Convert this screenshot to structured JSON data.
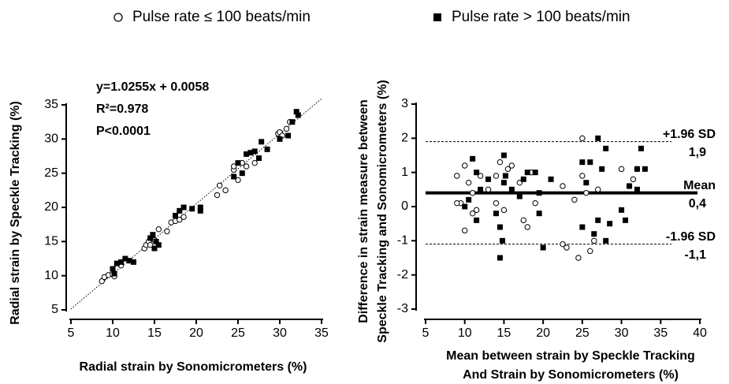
{
  "chart_data": [
    {
      "type": "scatter",
      "xlabel": "Radial strain by Sonomicrometers (%)",
      "ylabel": "Radial strain by Speckle Tracking (%)",
      "annotations": [
        "y=1.0255x + 0.0058",
        "R²=0.978",
        "P<0.0001"
      ],
      "fit_line": {
        "slope": 1.0255,
        "intercept": 0.0058,
        "style": "dotted"
      },
      "xlim": [
        5,
        35
      ],
      "ylim": [
        5,
        35
      ],
      "xticks": [
        5,
        10,
        15,
        20,
        25,
        30,
        35
      ],
      "yticks": [
        5,
        10,
        15,
        20,
        25,
        30,
        35
      ],
      "series": [
        {
          "name": "Pulse rate ≤ 100 beats/min",
          "marker": "circle",
          "color": "#000000",
          "x": [
            8.7,
            9,
            9.5,
            10,
            10.2,
            11,
            13.8,
            14,
            14.3,
            14.5,
            15,
            15.5,
            16.5,
            17,
            17.5,
            18,
            18.5,
            22.5,
            22.8,
            23.5,
            24.5,
            24.5,
            25,
            25.5,
            26,
            27,
            29.8,
            30,
            30.3,
            30.8,
            31.2
          ],
          "values": [
            9.2,
            9.8,
            10.1,
            10.2,
            9.9,
            11.5,
            14,
            14.5,
            15,
            14.5,
            15.2,
            16.8,
            16.5,
            17.8,
            18,
            18.2,
            18.6,
            21.8,
            23.2,
            22.5,
            25.5,
            26,
            24,
            26.5,
            26,
            26.5,
            30.8,
            31,
            30.5,
            31.5,
            32.5
          ]
        },
        {
          "name": "Pulse rate > 100 beats/min",
          "marker": "square",
          "color": "#000000",
          "x": [
            10,
            10.2,
            10.5,
            11,
            11.5,
            12,
            12.5,
            14.5,
            15,
            15.2,
            15.5,
            14.8,
            17.5,
            18,
            18.5,
            19.5,
            20.5,
            20.5,
            24.5,
            25,
            25.5,
            26,
            26.5,
            27,
            27.5,
            27.8,
            28.5,
            30,
            31,
            31.5,
            32,
            32.2
          ],
          "values": [
            11,
            10.3,
            11.8,
            12,
            12.5,
            12.2,
            12,
            15.5,
            14,
            15,
            14.5,
            16,
            18.8,
            19.5,
            20,
            19.8,
            20,
            19.5,
            24.5,
            26.5,
            25,
            27.8,
            28,
            28.2,
            27.2,
            29.6,
            28.5,
            30,
            30.5,
            32.5,
            34,
            33.5
          ]
        }
      ]
    },
    {
      "type": "scatter",
      "xlabel": [
        "Mean between strain by Speckle Tracking",
        "And Strain by Sonomicrometers (%)"
      ],
      "ylabel": [
        "Difference in strain measure between",
        "Speckle Tracking and Sonomicrometers (%)"
      ],
      "xlim": [
        5,
        40
      ],
      "ylim": [
        -3,
        3
      ],
      "xticks": [
        5,
        10,
        15,
        20,
        25,
        30,
        35,
        40
      ],
      "yticks": [
        -3,
        -2,
        -1,
        0,
        1,
        2,
        3
      ],
      "reference_lines": [
        {
          "value": 1.9,
          "label": "+1.96 SD",
          "value_label": "1,9",
          "style": "dashed"
        },
        {
          "value": 0.4,
          "label": "Mean",
          "value_label": "0,4",
          "style": "solid"
        },
        {
          "value": -1.1,
          "label": "-1.96 SD",
          "value_label": "-1,1",
          "style": "dashed"
        }
      ],
      "series": [
        {
          "marker": "circle",
          "color": "#000000",
          "x": [
            9,
            9.5,
            10,
            10,
            10.5,
            11,
            11.5,
            12,
            13,
            14,
            14.5,
            15,
            15.5,
            16,
            17,
            17.5,
            18,
            18.5,
            19,
            22.5,
            22.5,
            23,
            24,
            24.5,
            25,
            25,
            25.5,
            26,
            26.5,
            27,
            30,
            31,
            31.5,
            32,
            11,
            9,
            14
          ],
          "values": [
            0.9,
            0.1,
            1.2,
            -0.7,
            0.7,
            0.4,
            -0.1,
            0.9,
            0.5,
            0.1,
            1.3,
            -0.1,
            1.1,
            1.2,
            0.7,
            -0.4,
            -0.6,
            1,
            0.1,
            0.6,
            -1.1,
            -1.2,
            0.2,
            -1.5,
            0.9,
            2,
            0.4,
            -1.3,
            -1,
            0.5,
            1.1,
            0.6,
            0.8,
            1.1,
            -0.2,
            0.1,
            0.9
          ]
        },
        {
          "marker": "square",
          "color": "#000000",
          "x": [
            10,
            10.5,
            11,
            11.5,
            11.5,
            12,
            13,
            14,
            14.5,
            14.8,
            15,
            15.2,
            15,
            14.5,
            16,
            17,
            17.5,
            18,
            19,
            19.5,
            19.5,
            20,
            21,
            25,
            25,
            25.5,
            26,
            26.5,
            27,
            27,
            27.5,
            28,
            28,
            28.5,
            30,
            30.5,
            31,
            32,
            32,
            32.5,
            33
          ],
          "values": [
            0,
            0.2,
            1.4,
            1,
            -0.4,
            0.5,
            0.8,
            -0.2,
            -0.6,
            -1,
            1.5,
            0.9,
            0.7,
            -1.5,
            0.5,
            0.3,
            0.8,
            1,
            1,
            0.4,
            -0.2,
            -1.2,
            0.8,
            1.3,
            -0.6,
            0.7,
            1.3,
            -0.8,
            2,
            -0.4,
            1.1,
            -1,
            1.7,
            -0.5,
            -0.1,
            -0.4,
            0.6,
            0.5,
            1.1,
            1.7,
            1.1
          ]
        }
      ]
    }
  ]
}
